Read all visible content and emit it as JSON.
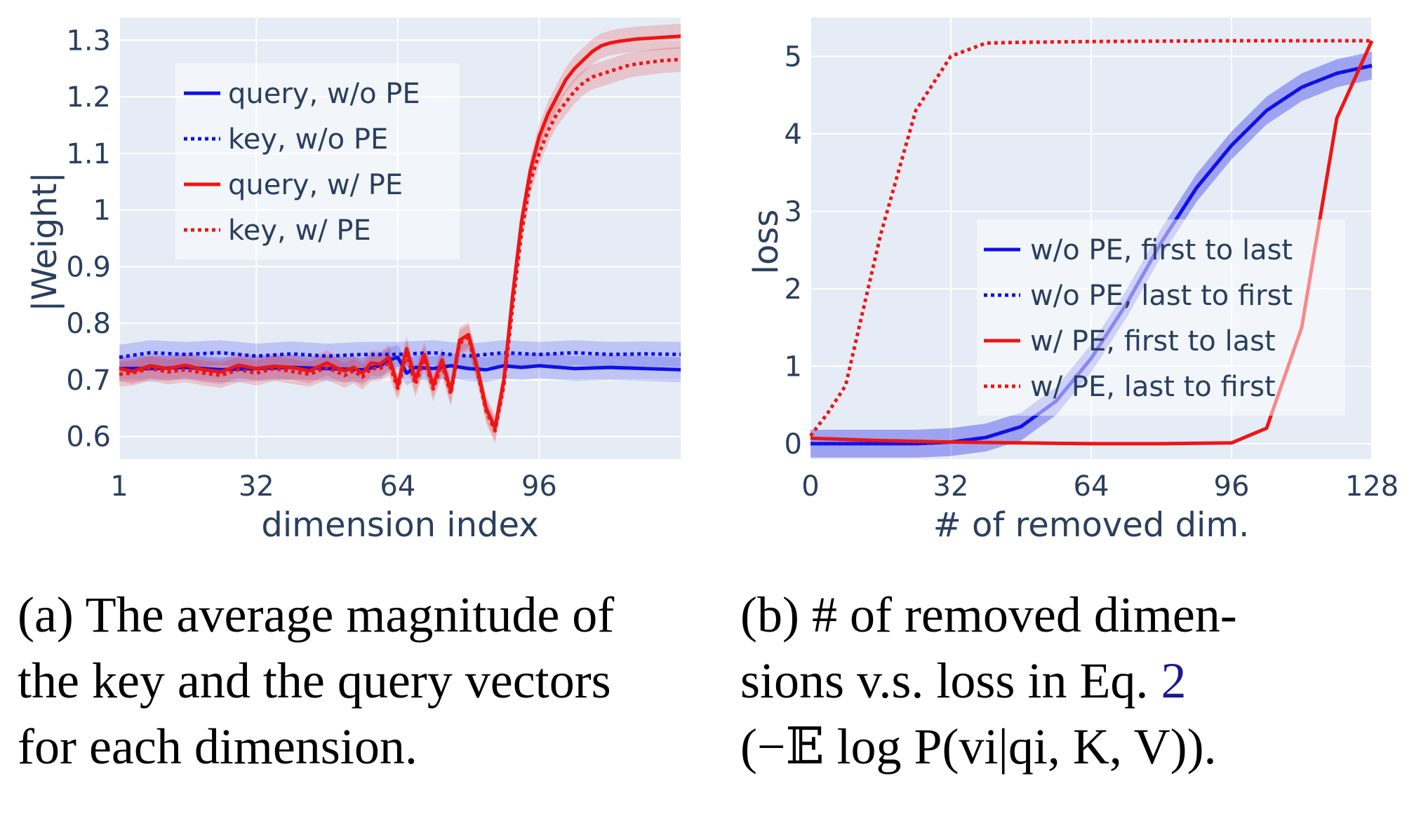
{
  "colors": {
    "blue": "#1010e8",
    "red": "#ee1515",
    "plot_bg": "#e5ecf6",
    "grid": "#ffffff",
    "text": "#2a3f5f"
  },
  "chart_data": [
    {
      "type": "line",
      "xlabel": "dimension index",
      "ylabel": "|Weight|",
      "xticks": [
        "1",
        "32",
        "64",
        "96"
      ],
      "xtick_values": [
        1,
        32,
        64,
        96
      ],
      "yticks": [
        "0.6",
        "0.7",
        "0.8",
        "0.9",
        "1",
        "1.1",
        "1.2",
        "1.3"
      ],
      "ytick_values": [
        0.6,
        0.7,
        0.8,
        0.9,
        1.0,
        1.1,
        1.2,
        1.3
      ],
      "xlim": [
        1,
        128
      ],
      "ylim": [
        0.56,
        1.34
      ],
      "legend_position": "top-left",
      "grid": true,
      "series": [
        {
          "name": "query, w/o PE",
          "style": "solid",
          "color": "#1010e8",
          "band": true,
          "x": [
            1,
            8,
            16,
            24,
            32,
            40,
            48,
            56,
            60,
            62,
            64,
            66,
            68,
            72,
            76,
            80,
            84,
            88,
            92,
            96,
            104,
            112,
            120,
            128
          ],
          "y": [
            0.72,
            0.72,
            0.722,
            0.718,
            0.72,
            0.722,
            0.72,
            0.718,
            0.725,
            0.735,
            0.74,
            0.712,
            0.722,
            0.72,
            0.725,
            0.72,
            0.718,
            0.725,
            0.722,
            0.725,
            0.72,
            0.722,
            0.72,
            0.718
          ]
        },
        {
          "name": "key, w/o PE",
          "style": "dotted",
          "color": "#1010e8",
          "band": true,
          "x": [
            1,
            8,
            16,
            24,
            32,
            40,
            48,
            56,
            64,
            72,
            80,
            88,
            96,
            104,
            112,
            120,
            128
          ],
          "y": [
            0.74,
            0.748,
            0.745,
            0.748,
            0.742,
            0.746,
            0.742,
            0.745,
            0.745,
            0.748,
            0.742,
            0.748,
            0.745,
            0.748,
            0.745,
            0.746,
            0.745
          ]
        },
        {
          "name": "query, w/ PE",
          "style": "solid",
          "color": "#ee1515",
          "band": true,
          "x": [
            1,
            4,
            8,
            12,
            16,
            20,
            24,
            28,
            32,
            36,
            40,
            44,
            48,
            50,
            52,
            54,
            56,
            58,
            60,
            62,
            64,
            66,
            68,
            70,
            72,
            74,
            76,
            78,
            80,
            82,
            84,
            86,
            88,
            90,
            92,
            94,
            96,
            98,
            100,
            102,
            104,
            106,
            108,
            110,
            112,
            114,
            116,
            118,
            120,
            122,
            124,
            126,
            128
          ],
          "y": [
            0.72,
            0.715,
            0.725,
            0.72,
            0.726,
            0.718,
            0.714,
            0.726,
            0.72,
            0.724,
            0.722,
            0.716,
            0.73,
            0.722,
            0.716,
            0.722,
            0.712,
            0.73,
            0.728,
            0.74,
            0.69,
            0.755,
            0.7,
            0.745,
            0.69,
            0.735,
            0.68,
            0.77,
            0.78,
            0.72,
            0.65,
            0.615,
            0.7,
            0.85,
            0.98,
            1.07,
            1.13,
            1.17,
            1.2,
            1.23,
            1.25,
            1.265,
            1.28,
            1.29,
            1.295,
            1.298,
            1.3,
            1.302,
            1.303,
            1.304,
            1.305,
            1.306,
            1.307
          ]
        },
        {
          "name": "key, w/ PE",
          "style": "dotted",
          "color": "#ee1515",
          "band": true,
          "x": [
            1,
            4,
            8,
            12,
            16,
            20,
            24,
            28,
            32,
            36,
            40,
            44,
            48,
            50,
            52,
            54,
            56,
            58,
            60,
            62,
            64,
            66,
            68,
            70,
            72,
            74,
            76,
            78,
            80,
            82,
            84,
            86,
            88,
            90,
            92,
            94,
            96,
            98,
            100,
            102,
            104,
            106,
            108,
            110,
            112,
            114,
            116,
            118,
            120,
            122,
            124,
            126,
            128
          ],
          "y": [
            0.71,
            0.712,
            0.72,
            0.714,
            0.718,
            0.712,
            0.708,
            0.718,
            0.712,
            0.72,
            0.715,
            0.71,
            0.722,
            0.715,
            0.708,
            0.716,
            0.705,
            0.72,
            0.72,
            0.73,
            0.685,
            0.745,
            0.692,
            0.738,
            0.684,
            0.728,
            0.675,
            0.765,
            0.775,
            0.715,
            0.645,
            0.61,
            0.69,
            0.83,
            0.96,
            1.05,
            1.1,
            1.14,
            1.17,
            1.19,
            1.21,
            1.225,
            1.235,
            1.24,
            1.245,
            1.25,
            1.255,
            1.258,
            1.26,
            1.262,
            1.264,
            1.265,
            1.266
          ]
        }
      ]
    },
    {
      "type": "line",
      "xlabel": "# of removed dim.",
      "ylabel": "loss",
      "xticks": [
        "0",
        "32",
        "64",
        "96",
        "128"
      ],
      "xtick_values": [
        0,
        32,
        64,
        96,
        128
      ],
      "yticks": [
        "0",
        "1",
        "2",
        "3",
        "4",
        "5"
      ],
      "ytick_values": [
        0,
        1,
        2,
        3,
        4,
        5
      ],
      "xlim": [
        0,
        128
      ],
      "ylim": [
        -0.2,
        5.5
      ],
      "legend_position": "right",
      "grid": true,
      "series": [
        {
          "name": "w/o PE, first to last",
          "style": "solid",
          "color": "#1010e8",
          "band": true,
          "x": [
            0,
            8,
            16,
            24,
            32,
            40,
            48,
            56,
            64,
            72,
            80,
            88,
            96,
            104,
            112,
            120,
            128
          ],
          "y": [
            0.0,
            0.0,
            0.0,
            0.0,
            0.02,
            0.08,
            0.22,
            0.55,
            1.1,
            1.8,
            2.6,
            3.3,
            3.85,
            4.3,
            4.6,
            4.78,
            4.88
          ]
        },
        {
          "name": "w/o PE, last to first",
          "style": "dotted",
          "color": "#1010e8",
          "band": true,
          "x": [
            0,
            8,
            16,
            24,
            32,
            40,
            48,
            56,
            64,
            72,
            80,
            88,
            96,
            104,
            112,
            120,
            128
          ],
          "y": [
            0.0,
            0.0,
            0.0,
            0.0,
            0.02,
            0.08,
            0.22,
            0.55,
            1.1,
            1.8,
            2.6,
            3.3,
            3.85,
            4.3,
            4.6,
            4.78,
            4.88
          ]
        },
        {
          "name": "w/ PE, first to last",
          "style": "solid",
          "color": "#ee1515",
          "band": false,
          "x": [
            0,
            16,
            32,
            48,
            64,
            80,
            96,
            104,
            112,
            120,
            128
          ],
          "y": [
            0.07,
            0.04,
            0.02,
            0.01,
            0.0,
            0.0,
            0.01,
            0.2,
            1.5,
            4.2,
            5.2
          ]
        },
        {
          "name": "w/ PE, last to first",
          "style": "dotted",
          "color": "#ee1515",
          "band": false,
          "x": [
            0,
            4,
            8,
            16,
            24,
            32,
            40,
            48,
            64,
            96,
            128
          ],
          "y": [
            0.1,
            0.4,
            0.75,
            2.7,
            4.3,
            5.0,
            5.17,
            5.18,
            5.19,
            5.2,
            5.2
          ]
        }
      ]
    }
  ],
  "captions": {
    "a": {
      "lines": [
        "(a) The average magnitude of",
        "the key and the query vectors",
        "for each dimension."
      ]
    },
    "b": {
      "line1_words": [
        "(b)",
        "#",
        "of",
        "removed",
        "dimen-"
      ],
      "line2_words": [
        "sions",
        "v.s.",
        "loss",
        "in",
        "Eq."
      ],
      "line2_ref": "2",
      "line3": "(−𝔼 log P(vi|qi, K, V))."
    }
  }
}
